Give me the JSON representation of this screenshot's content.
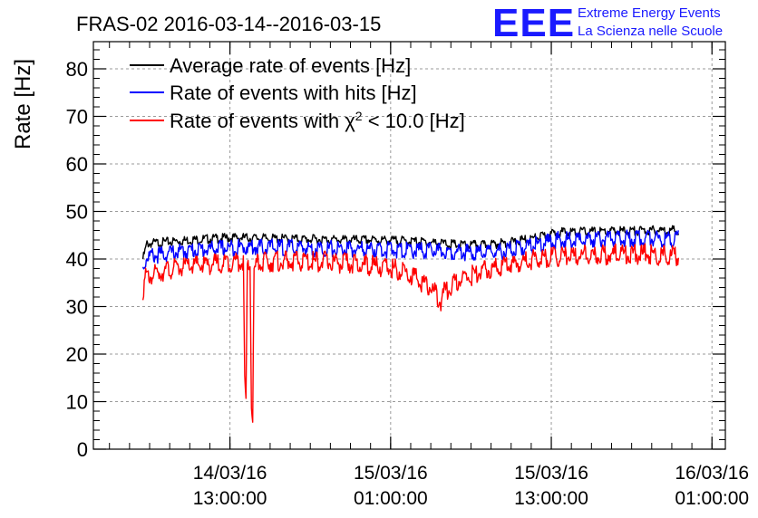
{
  "chart_data": {
    "type": "line",
    "title": "FRAS-02 2016-03-14--2016-03-15",
    "ylabel": "Rate [Hz]",
    "xlabel": "",
    "ylim": [
      0,
      85
    ],
    "y_ticks": [
      0,
      10,
      20,
      30,
      40,
      50,
      60,
      70,
      80
    ],
    "x_ticks": [
      {
        "line1": "14/03/16",
        "line2": "13:00:00",
        "hour": 13
      },
      {
        "line1": "15/03/16",
        "line2": "01:00:00",
        "hour": 25
      },
      {
        "line1": "15/03/16",
        "line2": "13:00:00",
        "hour": 37
      },
      {
        "line1": "16/03/16",
        "line2": "01:00:00",
        "hour": 49
      }
    ],
    "xlim_hours": [
      2.8,
      50.0
    ],
    "grid": true,
    "legend_position": "top-left",
    "series": [
      {
        "name": "Average rate of events [Hz]",
        "color": "#000000",
        "x": [
          6.5,
          6.8,
          8,
          10,
          12,
          13.5,
          16,
          18,
          20,
          22,
          24,
          26,
          28,
          30,
          32,
          34,
          36,
          37.5,
          39,
          41,
          43,
          45,
          46.5
        ],
        "y": [
          40,
          43.2,
          43.5,
          44,
          44.3,
          44.5,
          44.3,
          44.2,
          44.1,
          44,
          44,
          43.8,
          43.5,
          43,
          42.9,
          43.5,
          44.5,
          45.6,
          45.7,
          45.8,
          45.9,
          46,
          46
        ]
      },
      {
        "name": "Rate of events with hits [Hz]",
        "color": "#0000ff",
        "x": [
          6.5,
          6.8,
          8,
          10,
          12,
          14,
          16,
          18,
          20,
          22,
          24,
          26,
          28,
          30,
          32,
          34,
          36,
          37.5,
          39,
          41,
          43,
          45,
          46.5
        ],
        "y": [
          38,
          40.5,
          41,
          41.8,
          42.2,
          42.5,
          42.5,
          42.3,
          42.2,
          42,
          42,
          41.8,
          41.7,
          41.5,
          41.2,
          42,
          43,
          44,
          44,
          44.2,
          44.3,
          44.3,
          44.3
        ]
      },
      {
        "name": "Rate of events with χ² < 10.0 [Hz]",
        "color": "#ff0000",
        "x": [
          6.5,
          6.7,
          8,
          10,
          12,
          13.5,
          14,
          14.1,
          14.2,
          14.3,
          14.5,
          14.6,
          14.7,
          14.8,
          15,
          16,
          18,
          20,
          22,
          24,
          26,
          28,
          28.5,
          28.7,
          29,
          30,
          32,
          34,
          36,
          38,
          40,
          42,
          44,
          46.5
        ],
        "y": [
          33.5,
          36,
          37.5,
          38.5,
          39,
          39.5,
          39.5,
          15,
          9,
          38,
          39,
          10,
          7,
          37,
          39,
          39.5,
          39.5,
          39.5,
          39,
          38.5,
          37.5,
          34,
          32,
          30.8,
          33,
          35.5,
          37.5,
          39,
          40,
          40.5,
          40.8,
          41,
          41,
          40.5
        ]
      }
    ]
  },
  "logo": {
    "letters": "EEE",
    "line1": "Extreme Energy Events",
    "line2": "La Scienza nelle Scuole"
  },
  "legend_labels": {
    "chi_prefix": "Rate of events with ",
    "chi_symbol": "χ",
    "chi_sup": "2",
    "chi_suffix": " < 10.0 [Hz]"
  }
}
